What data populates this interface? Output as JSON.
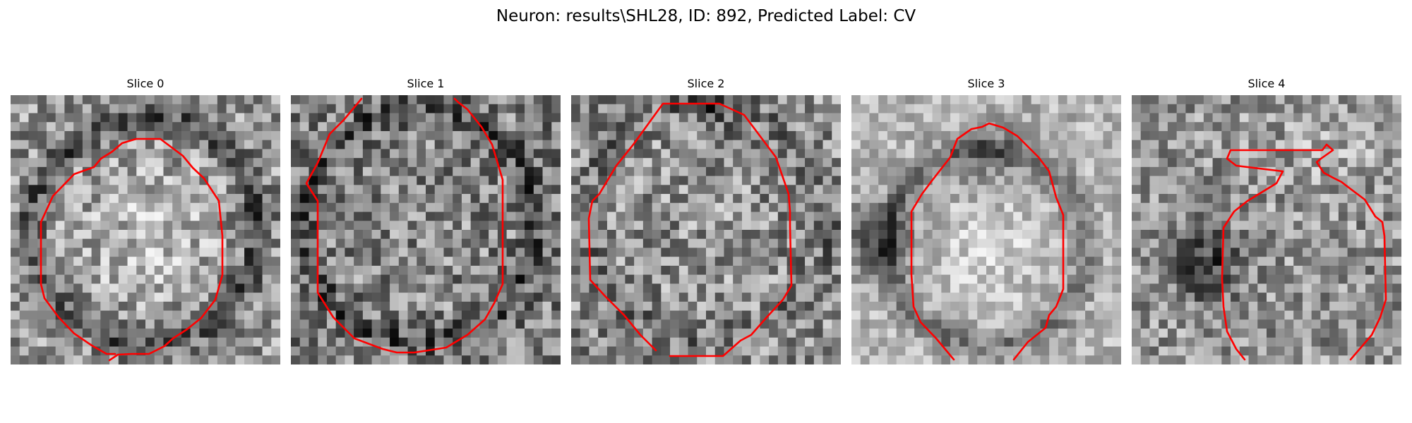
{
  "figure": {
    "title": "Neuron: results\\SHL28, ID: 892, Predicted Label: CV"
  },
  "colors": {
    "contour": "#ff0000",
    "background": "#ffffff"
  },
  "slices": [
    {
      "title": "Slice 0"
    },
    {
      "title": "Slice 1"
    },
    {
      "title": "Slice 2"
    },
    {
      "title": "Slice 3"
    },
    {
      "title": "Slice 4"
    }
  ]
}
